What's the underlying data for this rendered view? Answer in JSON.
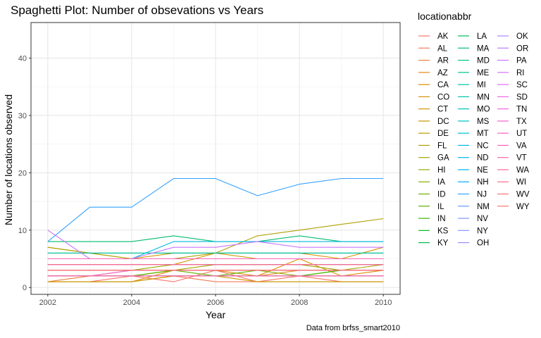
{
  "chart_data": {
    "type": "line",
    "title": "Spaghetti Plot: Number of obsevations vs Years",
    "xlabel": "Year",
    "ylabel": "Number of locations observed",
    "caption": "Data from brfss_smart2010",
    "legend_title": "locationabbr",
    "legend_position": "right",
    "xlim": [
      2002,
      2010
    ],
    "ylim": [
      0,
      45
    ],
    "x_ticks": [
      2002,
      2004,
      2006,
      2008,
      2010
    ],
    "y_ticks": [
      0,
      10,
      20,
      30,
      40
    ],
    "grid": true,
    "x": [
      2002,
      2003,
      2004,
      2005,
      2006,
      2007,
      2008,
      2009,
      2010
    ],
    "series": [
      {
        "name": "AK",
        "color": "#F8766D",
        "values": [
          null,
          1,
          2,
          1,
          3,
          1,
          2,
          1,
          1
        ]
      },
      {
        "name": "AL",
        "color": "#F37B59",
        "values": [
          1,
          1,
          1,
          2,
          1,
          1,
          1,
          1,
          1
        ]
      },
      {
        "name": "AR",
        "color": "#ED8141",
        "values": [
          1,
          2,
          2,
          3,
          3,
          3,
          3,
          3,
          3
        ]
      },
      {
        "name": "AZ",
        "color": "#E7861B",
        "values": [
          2,
          2,
          2,
          2,
          2,
          2,
          3,
          3,
          3
        ]
      },
      {
        "name": "CA",
        "color": "#E08B00",
        "values": [
          1,
          1,
          1,
          3,
          3,
          2,
          5,
          2,
          3
        ]
      },
      {
        "name": "CO",
        "color": "#D89000",
        "values": [
          4,
          4,
          4,
          4,
          6,
          6,
          6,
          5,
          7
        ]
      },
      {
        "name": "CT",
        "color": "#CF9400",
        "values": [
          7,
          6,
          5,
          6,
          6,
          5,
          5,
          5,
          5
        ]
      },
      {
        "name": "DC",
        "color": "#C59900",
        "values": [
          1,
          1,
          1,
          2,
          2,
          1,
          1,
          1,
          1
        ]
      },
      {
        "name": "DE",
        "color": "#BB9D00",
        "values": [
          3,
          3,
          3,
          3,
          3,
          3,
          3,
          3,
          3
        ]
      },
      {
        "name": "FL",
        "color": "#AFA100",
        "values": [
          7,
          6,
          5,
          5,
          6,
          9,
          10,
          11,
          12
        ]
      },
      {
        "name": "GA",
        "color": "#A3A500",
        "values": [
          3,
          3,
          3,
          3,
          4,
          4,
          4,
          3,
          4
        ]
      },
      {
        "name": "HI",
        "color": "#96A900",
        "values": [
          2,
          2,
          3,
          4,
          4,
          4,
          4,
          4,
          4
        ]
      },
      {
        "name": "IA",
        "color": "#86AC00",
        "values": [
          3,
          3,
          3,
          3,
          3,
          3,
          2,
          3,
          3
        ]
      },
      {
        "name": "ID",
        "color": "#75AF00",
        "values": [
          2,
          2,
          2,
          3,
          3,
          3,
          3,
          3,
          3
        ]
      },
      {
        "name": "IL",
        "color": "#5EB300",
        "values": [
          2,
          2,
          2,
          3,
          2,
          3,
          3,
          3,
          3
        ]
      },
      {
        "name": "IN",
        "color": "#3DB600",
        "values": [
          2,
          2,
          2,
          2,
          2,
          2,
          2,
          3,
          3
        ]
      },
      {
        "name": "KS",
        "color": "#00B81F",
        "values": [
          3,
          3,
          3,
          3,
          3,
          3,
          3,
          3,
          3
        ]
      },
      {
        "name": "KY",
        "color": "#00BA42",
        "values": [
          3,
          3,
          3,
          3,
          3,
          3,
          3,
          3,
          3
        ]
      },
      {
        "name": "LA",
        "color": "#00BC59",
        "values": [
          3,
          3,
          3,
          3,
          3,
          3,
          3,
          3,
          3
        ]
      },
      {
        "name": "MA",
        "color": "#00BD6D",
        "values": [
          8,
          8,
          8,
          9,
          8,
          8,
          9,
          8,
          8
        ]
      },
      {
        "name": "MD",
        "color": "#00BF7F",
        "values": [
          6,
          6,
          6,
          6,
          6,
          6,
          6,
          6,
          6
        ]
      },
      {
        "name": "ME",
        "color": "#00C08F",
        "values": [
          2,
          2,
          2,
          2,
          2,
          2,
          2,
          2,
          2
        ]
      },
      {
        "name": "MI",
        "color": "#00C09E",
        "values": [
          6,
          6,
          6,
          6,
          6,
          6,
          6,
          6,
          6
        ]
      },
      {
        "name": "MN",
        "color": "#00C0AC",
        "values": [
          2,
          2,
          2,
          2,
          2,
          2,
          2,
          2,
          2
        ]
      },
      {
        "name": "MO",
        "color": "#00BFBA",
        "values": [
          2,
          2,
          2,
          2,
          2,
          2,
          2,
          2,
          2
        ]
      },
      {
        "name": "MS",
        "color": "#00BEC7",
        "values": [
          3,
          3,
          3,
          3,
          3,
          3,
          3,
          3,
          3
        ]
      },
      {
        "name": "MT",
        "color": "#00BCD4",
        "values": [
          2,
          2,
          2,
          2,
          2,
          2,
          2,
          2,
          2
        ]
      },
      {
        "name": "NC",
        "color": "#00B9E0",
        "values": [
          5,
          5,
          5,
          8,
          8,
          8,
          8,
          8,
          8
        ]
      },
      {
        "name": "ND",
        "color": "#00B6EB",
        "values": [
          3,
          3,
          3,
          3,
          3,
          3,
          3,
          3,
          3
        ]
      },
      {
        "name": "NE",
        "color": "#00B0F6",
        "values": [
          3,
          3,
          3,
          3,
          3,
          3,
          3,
          3,
          3
        ]
      },
      {
        "name": "NH",
        "color": "#00AAFE",
        "values": [
          5,
          5,
          5,
          5,
          5,
          5,
          5,
          5,
          5
        ]
      },
      {
        "name": "NJ",
        "color": "#35A2FF",
        "values": [
          8,
          14,
          14,
          19,
          19,
          16,
          18,
          19,
          19
        ]
      },
      {
        "name": "NM",
        "color": "#619CFF",
        "values": [
          3,
          3,
          3,
          3,
          3,
          3,
          3,
          3,
          3
        ]
      },
      {
        "name": "NV",
        "color": "#7997FF",
        "values": [
          3,
          3,
          3,
          3,
          3,
          3,
          3,
          3,
          3
        ]
      },
      {
        "name": "NY",
        "color": "#8D91FF",
        "values": [
          5,
          5,
          5,
          5,
          5,
          5,
          5,
          5,
          5
        ]
      },
      {
        "name": "OH",
        "color": "#9E8AFF",
        "values": [
          5,
          5,
          5,
          5,
          5,
          5,
          5,
          5,
          5
        ]
      },
      {
        "name": "OK",
        "color": "#AE83FF",
        "values": [
          3,
          3,
          3,
          3,
          3,
          3,
          3,
          3,
          3
        ]
      },
      {
        "name": "OR",
        "color": "#BC7CFF",
        "values": [
          4,
          4,
          4,
          4,
          4,
          4,
          4,
          4,
          4
        ]
      },
      {
        "name": "PA",
        "color": "#C876FF",
        "values": [
          10,
          5,
          5,
          7,
          7,
          8,
          7,
          7,
          7
        ]
      },
      {
        "name": "RI",
        "color": "#D56FFC",
        "values": [
          5,
          5,
          5,
          5,
          5,
          5,
          5,
          5,
          5
        ]
      },
      {
        "name": "SC",
        "color": "#E16BF4",
        "values": [
          3,
          3,
          3,
          3,
          3,
          3,
          3,
          3,
          3
        ]
      },
      {
        "name": "SD",
        "color": "#EC66EA",
        "values": [
          2,
          2,
          2,
          2,
          2,
          2,
          2,
          2,
          2
        ]
      },
      {
        "name": "TN",
        "color": "#F464DF",
        "values": [
          3,
          3,
          3,
          3,
          3,
          3,
          3,
          3,
          3
        ]
      },
      {
        "name": "TX",
        "color": "#FA62D3",
        "values": [
          2,
          2,
          3,
          3,
          3,
          3,
          3,
          3,
          3
        ]
      },
      {
        "name": "UT",
        "color": "#FE61C5",
        "values": [
          2,
          2,
          2,
          2,
          2,
          2,
          2,
          2,
          2
        ]
      },
      {
        "name": "VA",
        "color": "#FF61B8",
        "values": [
          5,
          5,
          5,
          5,
          5,
          5,
          5,
          5,
          5
        ]
      },
      {
        "name": "VT",
        "color": "#FF62AA",
        "values": [
          2,
          2,
          2,
          2,
          2,
          2,
          2,
          2,
          2
        ]
      },
      {
        "name": "WA",
        "color": "#FF659B",
        "values": [
          2,
          2,
          2,
          2,
          2,
          2,
          2,
          2,
          2
        ]
      },
      {
        "name": "WI",
        "color": "#FD6A8B",
        "values": [
          4,
          4,
          4,
          4,
          4,
          4,
          4,
          4,
          4
        ]
      },
      {
        "name": "WV",
        "color": "#FB6F7B",
        "values": [
          3,
          3,
          3,
          3,
          3,
          3,
          3,
          3,
          3
        ]
      },
      {
        "name": "WY",
        "color": "#F8766D",
        "values": [
          3,
          3,
          3,
          3,
          3,
          3,
          3,
          3,
          3
        ]
      }
    ]
  }
}
